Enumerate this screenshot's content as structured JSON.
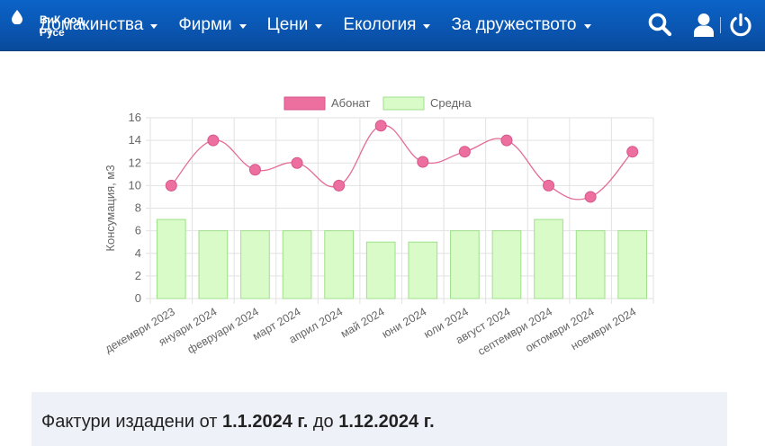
{
  "brand": {
    "line1": "ВиК оод",
    "line2": "Русе"
  },
  "nav": {
    "items": [
      {
        "label": "Домакинства"
      },
      {
        "label": "Фирми"
      },
      {
        "label": "Цени"
      },
      {
        "label": "Екология"
      },
      {
        "label": "За дружеството"
      }
    ]
  },
  "icons": {
    "search": "search-icon",
    "user": "user-icon",
    "power": "power-icon"
  },
  "colors": {
    "navbar": "#0a55b0",
    "line": "#e46b98",
    "point": "#ec6fa0",
    "bar_fill": "#d8fbc8",
    "bar_border": "#9fe08a"
  },
  "chart_data": {
    "type": "bar",
    "categories": [
      "декември 2023",
      "януари 2024",
      "февруари 2024",
      "март 2024",
      "април 2024",
      "май 2024",
      "юни 2024",
      "юли 2024",
      "август 2024",
      "септември 2024",
      "октомври 2024",
      "ноември 2024"
    ],
    "series": [
      {
        "name": "Абонат",
        "type": "line",
        "values": [
          10,
          14,
          11.4,
          12,
          10,
          15.3,
          12.1,
          13,
          14,
          10,
          9,
          13
        ]
      },
      {
        "name": "Средна",
        "type": "bar",
        "values": [
          7,
          6,
          6,
          6,
          6,
          5,
          5,
          6,
          6,
          7,
          6,
          6
        ]
      }
    ],
    "ylabel": "Консумация, м3",
    "ylim": [
      0,
      16
    ],
    "yticks": [
      "0",
      "2",
      "4",
      "6",
      "8",
      "10",
      "12",
      "14",
      "16"
    ],
    "grid": true,
    "legend": "top"
  },
  "invoices": {
    "prefix": "Фактури издадени от",
    "from": "1.1.2024 г.",
    "middle": "до",
    "to": "1.12.2024 г."
  }
}
